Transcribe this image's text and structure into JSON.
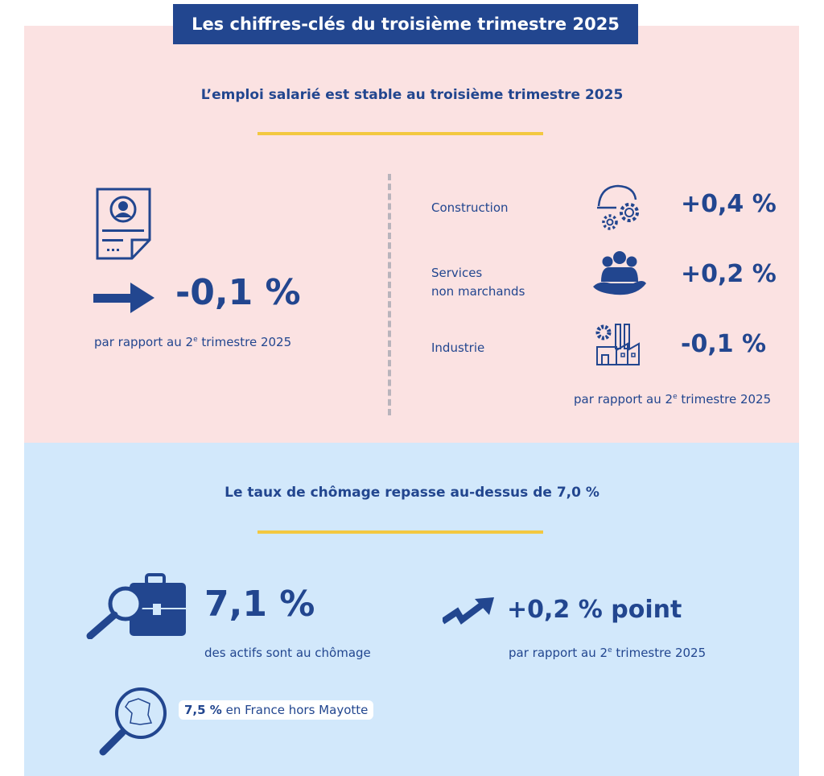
{
  "banner": {
    "title": "Les chiffres-clés du troisième trimestre 2025"
  },
  "employment": {
    "heading": "L’emploi salarié est stable au troisième trimestre 2025",
    "total": {
      "value": "-0,1 %",
      "trend": "stable",
      "note_prefix": "par rapport au 2",
      "note_sup": "e",
      "note_suffix": " trimestre 2025"
    },
    "sectors": [
      {
        "label": "Construction",
        "value": "+0,4 %",
        "icon": "construction-gears-icon"
      },
      {
        "label_line1": "Services",
        "label_line2": "non marchands",
        "value": "+0,2 %",
        "icon": "people-hand-icon"
      },
      {
        "label": "Industrie",
        "value": "-0,1 %",
        "icon": "factory-icon"
      }
    ],
    "sectors_note_prefix": "par rapport au 2",
    "sectors_note_sup": "e",
    "sectors_note_suffix": " trimestre 2025"
  },
  "unemployment": {
    "heading": "Le taux de chômage repasse au-dessus de 7,0 %",
    "rate": "7,1 %",
    "rate_caption": "des actifs sont au chômage",
    "change": "+0,2 % point",
    "change_note_prefix": "par rapport au 2",
    "change_note_sup": "e",
    "change_note_suffix": " trimestre 2025",
    "france_value": "7,5 %",
    "france_label": " en France hors Mayotte"
  },
  "colors": {
    "navy": "#22468f",
    "pink": "#fbe2e2",
    "blue": "#d2e8fb",
    "yellow": "#f3c840"
  }
}
